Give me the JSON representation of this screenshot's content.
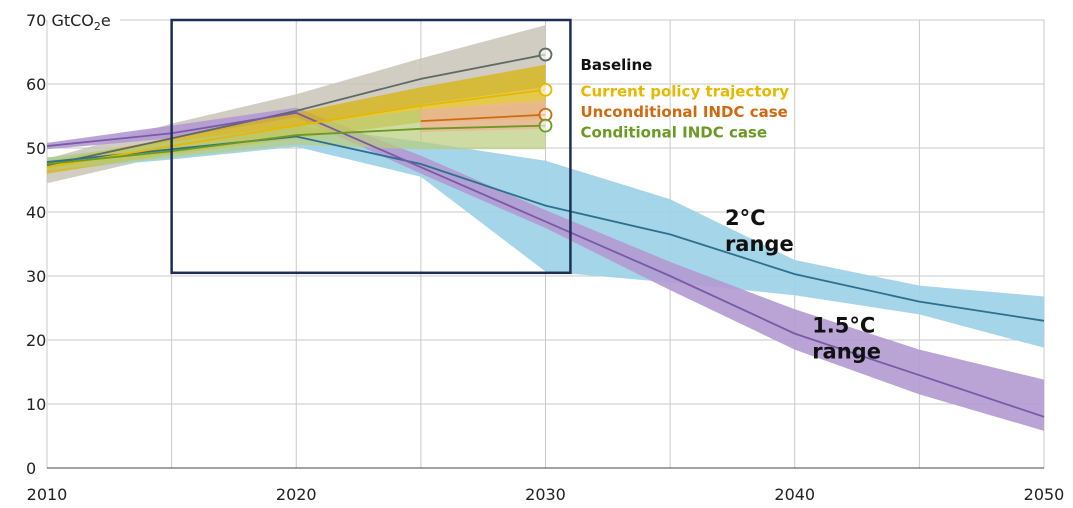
{
  "chart_data": {
    "type": "area",
    "x_range": [
      2010,
      2050
    ],
    "y_range": [
      0,
      70
    ],
    "unit_label": {
      "prefix": "70 GtCO",
      "sub": "2",
      "suffix": "e"
    },
    "x_ticks": [
      "2010",
      "2020",
      "2030",
      "2040",
      "2050"
    ],
    "y_ticks": [
      "0",
      "10",
      "20",
      "30",
      "40",
      "50",
      "60"
    ],
    "grid_years": [
      2010,
      2015,
      2020,
      2025,
      2030,
      2035,
      2040,
      2045,
      2050
    ],
    "grid_values": [
      0,
      10,
      20,
      30,
      40,
      50,
      60,
      70
    ],
    "highlight_box": {
      "x": [
        2015,
        2031
      ],
      "y": [
        30.5,
        70
      ]
    },
    "colors": {
      "baseline": "#5f6b62",
      "current_policy": "#e6b800",
      "unconditional": "#d06a10",
      "conditional": "#6a9a24",
      "two_degree": "#2d6f8e",
      "one_five_degree": "#7a5aa6",
      "box": "#1e2f55"
    },
    "series": [
      {
        "key": "baseline",
        "name": "Baseline",
        "x": [
          2010,
          2015,
          2020,
          2025,
          2030
        ],
        "values": [
          47.3,
          51.5,
          55.8,
          60.8,
          64.6
        ],
        "low": [
          44.5,
          49.0,
          53.2,
          56.8,
          59.5
        ],
        "high": [
          48.3,
          53.8,
          58.4,
          64.0,
          69.2
        ],
        "band_color": "#c9c4b8",
        "band_opacity": 0.85
      },
      {
        "key": "current_policy",
        "name": "Current policy trajectory",
        "x": [
          2010,
          2015,
          2020,
          2025,
          2030
        ],
        "values": [
          47.0,
          50.3,
          53.5,
          56.6,
          59.1
        ],
        "low": [
          46.0,
          49.0,
          51.5,
          54.0,
          54.5
        ],
        "high": [
          48.0,
          51.5,
          55.5,
          59.5,
          63.0
        ],
        "band_color": "#d9b300",
        "band_opacity": 0.7
      },
      {
        "key": "unconditional",
        "name": "Unconditional INDC case",
        "x": [
          2025,
          2030
        ],
        "values": [
          54.2,
          55.2
        ],
        "low": [
          52.5,
          53.0
        ],
        "high": [
          56.0,
          57.5
        ],
        "band_color": "#f2b394",
        "band_opacity": 0.75
      },
      {
        "key": "conditional",
        "name": "Conditional INDC case",
        "x": [
          2010,
          2015,
          2020,
          2025,
          2030
        ],
        "values": [
          47.5,
          49.5,
          52.0,
          53.0,
          53.5
        ],
        "low": [
          46.5,
          48.5,
          50.5,
          49.8,
          49.8
        ],
        "high": [
          48.5,
          51.0,
          53.5,
          56.0,
          57.0
        ],
        "band_color": "#b9cc7a",
        "band_opacity": 0.7
      },
      {
        "key": "two_degree",
        "name": "2°C range",
        "x": [
          2010,
          2015,
          2020,
          2025,
          2030,
          2035,
          2040,
          2045,
          2050
        ],
        "values": [
          47.8,
          49.8,
          51.8,
          47.5,
          41.0,
          36.5,
          30.3,
          26.0,
          23.0
        ],
        "low": [
          46.5,
          48.2,
          50.2,
          45.5,
          30.7,
          29.0,
          27.0,
          24.0,
          18.8
        ],
        "high": [
          48.5,
          51.0,
          53.5,
          51.0,
          48.0,
          42.0,
          32.5,
          28.5,
          26.8
        ],
        "band_color": "#9fd3e8",
        "band_opacity": 0.95
      },
      {
        "key": "one_five_degree",
        "name": "1.5°C range",
        "x": [
          2010,
          2015,
          2020,
          2025,
          2030,
          2035,
          2040,
          2045,
          2050
        ],
        "values": [
          50.3,
          52.3,
          55.5,
          47.0,
          38.5,
          30.0,
          21.0,
          14.5,
          8.0
        ],
        "low": [
          49.8,
          51.5,
          54.8,
          46.0,
          37.5,
          27.8,
          18.5,
          11.5,
          5.8
        ],
        "high": [
          50.8,
          53.5,
          56.3,
          48.8,
          40.3,
          32.2,
          24.8,
          18.5,
          13.8
        ],
        "band_color": "#b39ad2",
        "band_opacity": 0.9
      }
    ],
    "legend_labels": [
      {
        "key": "baseline",
        "text": "Baseline",
        "color": "#111111"
      },
      {
        "key": "current_policy",
        "text": "Current policy trajectory",
        "color": "#e6b800"
      },
      {
        "key": "unconditional",
        "text": "Unconditional INDC case",
        "color": "#d06a10"
      },
      {
        "key": "conditional",
        "text": "Conditional INDC case",
        "color": "#6a9a24"
      }
    ],
    "range_labels": [
      {
        "key": "two_degree",
        "lines": [
          "2°C",
          "range"
        ]
      },
      {
        "key": "one_five_degree",
        "lines": [
          "1.5°C",
          "range"
        ]
      }
    ]
  }
}
